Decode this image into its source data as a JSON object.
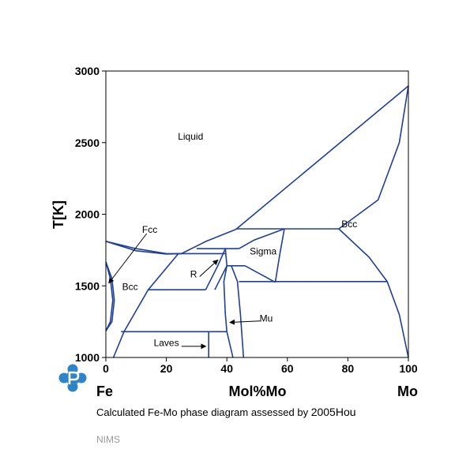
{
  "chart_data": {
    "type": "phase-diagram",
    "title": "",
    "xlabel": "Mol%Mo",
    "ylabel": "T[K]",
    "xlim": [
      0,
      100
    ],
    "ylim": [
      1000,
      3000
    ],
    "x_ticks": [
      0,
      20,
      40,
      60,
      80,
      100
    ],
    "y_ticks": [
      1000,
      1500,
      2000,
      2500,
      3000
    ],
    "x_left_label": "Fe",
    "x_right_label": "Mo",
    "regions": [
      {
        "name": "Liquid",
        "x": 28,
        "y": 2520
      },
      {
        "name": "Fcc",
        "x": 14.5,
        "y": 1870
      },
      {
        "name": "Sigma",
        "x": 52,
        "y": 1720
      },
      {
        "name": "Bcc",
        "x": 80.5,
        "y": 1910,
        "key": "bcc_mo"
      },
      {
        "name": "Bcc",
        "x": 8,
        "y": 1470,
        "key": "bcc_fe"
      },
      {
        "name": "R",
        "x": 29,
        "y": 1560
      },
      {
        "name": "Mu",
        "x": 53,
        "y": 1250
      },
      {
        "name": "Laves",
        "x": 20,
        "y": 1080
      }
    ],
    "curves": [
      {
        "name": "liquidus-fe-side",
        "points": [
          [
            0,
            1811
          ],
          [
            10,
            1760
          ],
          [
            20,
            1725
          ],
          [
            25,
            1725
          ]
        ]
      },
      {
        "name": "solidus-fe-side",
        "points": [
          [
            0,
            1811
          ],
          [
            10,
            1745
          ],
          [
            20,
            1722
          ],
          [
            25,
            1725
          ]
        ]
      },
      {
        "name": "liquidus-to-peritectic",
        "points": [
          [
            25,
            1725
          ],
          [
            33,
            1810
          ],
          [
            43,
            1895
          ]
        ]
      },
      {
        "name": "liquidus-mo-side",
        "points": [
          [
            43,
            1895
          ],
          [
            100,
            2896
          ]
        ]
      },
      {
        "name": "solidus-mo-side",
        "points": [
          [
            77,
            1898
          ],
          [
            90,
            2100
          ],
          [
            97,
            2500
          ],
          [
            100,
            2896
          ]
        ]
      },
      {
        "name": "peritectic-isotherm-1898",
        "points": [
          [
            43,
            1898
          ],
          [
            77,
            1898
          ]
        ]
      },
      {
        "name": "sigma-left-boundary",
        "points": [
          [
            44,
            1760
          ],
          [
            49,
            1820
          ],
          [
            59,
            1898
          ]
        ]
      },
      {
        "name": "sigma-right-boundary",
        "points": [
          [
            59,
            1898
          ],
          [
            57.5,
            1720
          ],
          [
            56,
            1525
          ]
        ]
      },
      {
        "name": "sigma-lower-left",
        "points": [
          [
            46,
            1640
          ],
          [
            56,
            1525
          ]
        ]
      },
      {
        "name": "isotherm-1760",
        "points": [
          [
            30,
            1760
          ],
          [
            44,
            1760
          ]
        ]
      },
      {
        "name": "isotherm-1725",
        "points": [
          [
            23,
            1725
          ],
          [
            39.5,
            1725
          ]
        ]
      },
      {
        "name": "isotherm-1640",
        "points": [
          [
            40,
            1640
          ],
          [
            46,
            1640
          ]
        ]
      },
      {
        "name": "isotherm-1530",
        "points": [
          [
            44,
            1530
          ],
          [
            93,
            1530
          ]
        ]
      },
      {
        "name": "isotherm-1473",
        "points": [
          [
            14,
            1473
          ],
          [
            33,
            1473
          ]
        ]
      },
      {
        "name": "isotherm-1180",
        "points": [
          [
            5,
            1180
          ],
          [
            40,
            1180
          ]
        ]
      },
      {
        "name": "bcc-fe-solvus",
        "points": [
          [
            24,
            1725
          ],
          [
            14,
            1473
          ],
          [
            6,
            1180
          ],
          [
            2.5,
            1000
          ]
        ]
      },
      {
        "name": "r-phase-left",
        "points": [
          [
            33,
            1473
          ],
          [
            37,
            1640
          ],
          [
            39.5,
            1760
          ]
        ]
      },
      {
        "name": "r-phase-right",
        "points": [
          [
            39.5,
            1760
          ],
          [
            40,
            1640
          ],
          [
            36,
            1473
          ]
        ]
      },
      {
        "name": "mu-left-boundary",
        "points": [
          [
            40,
            1640
          ],
          [
            39,
            1530
          ],
          [
            39.5,
            1300
          ],
          [
            40,
            1180
          ],
          [
            42,
            1000
          ]
        ]
      },
      {
        "name": "mu-right-boundary",
        "points": [
          [
            41.5,
            1640
          ],
          [
            43.5,
            1530
          ],
          [
            44.5,
            1300
          ],
          [
            45.5,
            1000
          ]
        ]
      },
      {
        "name": "laves-boundary",
        "points": [
          [
            34,
            1180
          ],
          [
            34,
            1000
          ]
        ]
      },
      {
        "name": "bcc-mo-solvus",
        "points": [
          [
            77,
            1898
          ],
          [
            87,
            1700
          ],
          [
            93,
            1530
          ],
          [
            97,
            1300
          ],
          [
            100,
            1000
          ]
        ]
      },
      {
        "name": "gamma-loop-outer",
        "points": [
          [
            0,
            1667
          ],
          [
            1.5,
            1550
          ],
          [
            2.3,
            1400
          ],
          [
            1.5,
            1250
          ],
          [
            0,
            1185
          ]
        ]
      },
      {
        "name": "gamma-loop-inner",
        "points": [
          [
            0,
            1667
          ],
          [
            2,
            1550
          ],
          [
            2.8,
            1400
          ],
          [
            2,
            1250
          ],
          [
            0,
            1185
          ]
        ]
      }
    ],
    "annotations": [
      {
        "text": "Fcc",
        "from": [
          13.5,
          1865
        ],
        "to": [
          1,
          1520
        ]
      },
      {
        "text": "R",
        "from": [
          31,
          1565
        ],
        "to": [
          37,
          1680
        ]
      },
      {
        "text": "Mu",
        "from": [
          51,
          1255
        ],
        "to": [
          41,
          1245
        ]
      },
      {
        "text": "Laves",
        "from": [
          25,
          1078
        ],
        "to": [
          33,
          1078
        ]
      }
    ]
  },
  "caption": {
    "prefix": "Calculated Fe-Mo phase diagram assessed by ",
    "reference": "2005Hou"
  },
  "credit": "NIMS",
  "colors": {
    "line": "#1f3f99",
    "logo": "#2e84c7"
  },
  "logo_icon": "p-logo-icon"
}
